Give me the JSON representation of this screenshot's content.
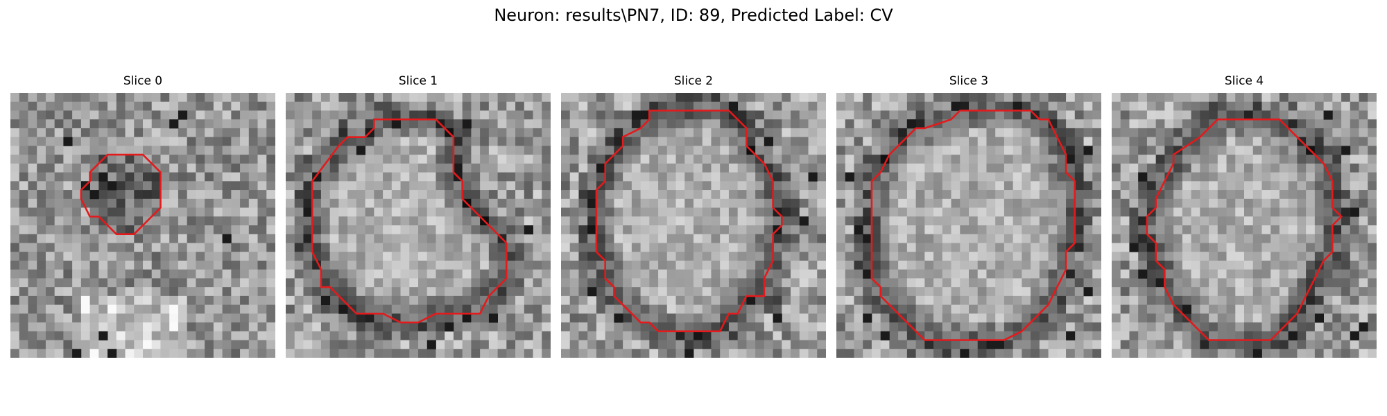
{
  "figure": {
    "title": "Neuron: results\\PN7, ID: 89, Predicted Label: CV"
  },
  "contour_color": "#e41a1c",
  "slices": [
    {
      "title": "Slice 0",
      "contour": [
        [
          11,
          7
        ],
        [
          15,
          7
        ],
        [
          17,
          9
        ],
        [
          17,
          13
        ],
        [
          14,
          16
        ],
        [
          12,
          16
        ],
        [
          10,
          14
        ],
        [
          9,
          14
        ],
        [
          8,
          12
        ],
        [
          8,
          11
        ],
        [
          9,
          10
        ],
        [
          9,
          9
        ]
      ],
      "dark_spots": [
        [
          8,
          10
        ],
        [
          9,
          11
        ],
        [
          10,
          9
        ],
        [
          11,
          10
        ],
        [
          18,
          3
        ],
        [
          19,
          2
        ],
        [
          6,
          5
        ],
        [
          10,
          27
        ],
        [
          11,
          29
        ],
        [
          7,
          29
        ],
        [
          24,
          16
        ]
      ]
    },
    {
      "title": "Slice 1",
      "contour": [
        [
          10,
          3
        ],
        [
          17,
          3
        ],
        [
          19,
          5
        ],
        [
          19,
          9
        ],
        [
          20,
          10
        ],
        [
          20,
          12
        ],
        [
          25,
          17
        ],
        [
          25,
          21
        ],
        [
          23,
          23
        ],
        [
          22,
          25
        ],
        [
          17,
          25
        ],
        [
          15,
          26
        ],
        [
          13,
          26
        ],
        [
          11,
          25
        ],
        [
          8,
          25
        ],
        [
          5,
          22
        ],
        [
          4,
          22
        ],
        [
          4,
          20
        ],
        [
          3,
          18
        ],
        [
          3,
          10
        ],
        [
          6,
          6
        ],
        [
          7,
          5
        ],
        [
          9,
          5
        ],
        [
          10,
          4
        ]
      ],
      "dark_spots": [
        [
          2,
          13
        ],
        [
          3,
          9
        ],
        [
          4,
          23
        ],
        [
          6,
          24
        ],
        [
          9,
          4
        ],
        [
          8,
          6
        ],
        [
          20,
          3
        ],
        [
          12,
          3
        ],
        [
          27,
          15
        ],
        [
          23,
          25
        ],
        [
          18,
          26
        ],
        [
          16,
          28
        ]
      ]
    },
    {
      "title": "Slice 2",
      "contour": [
        [
          10,
          2
        ],
        [
          19,
          2
        ],
        [
          21,
          4
        ],
        [
          21,
          6
        ],
        [
          23,
          8
        ],
        [
          24,
          10
        ],
        [
          24,
          13
        ],
        [
          25,
          14
        ],
        [
          25,
          15
        ],
        [
          24,
          16
        ],
        [
          24,
          19
        ],
        [
          23,
          21
        ],
        [
          23,
          23
        ],
        [
          21,
          23
        ],
        [
          20,
          25
        ],
        [
          19,
          25
        ],
        [
          18,
          27
        ],
        [
          11,
          27
        ],
        [
          10,
          26
        ],
        [
          9,
          26
        ],
        [
          6,
          23
        ],
        [
          6,
          22
        ],
        [
          5,
          21
        ],
        [
          5,
          19
        ],
        [
          4,
          18
        ],
        [
          4,
          11
        ],
        [
          5,
          10
        ],
        [
          5,
          8
        ],
        [
          7,
          6
        ],
        [
          7,
          5
        ],
        [
          9,
          4
        ],
        [
          10,
          3
        ]
      ],
      "dark_spots": [
        [
          3,
          12
        ],
        [
          4,
          8
        ],
        [
          3,
          22
        ],
        [
          6,
          25
        ],
        [
          14,
          29
        ],
        [
          13,
          30
        ],
        [
          19,
          1
        ],
        [
          23,
          5
        ],
        [
          27,
          14
        ],
        [
          28,
          9
        ],
        [
          24,
          25
        ],
        [
          8,
          2
        ]
      ]
    },
    {
      "title": "Slice 3",
      "contour": [
        [
          14,
          2
        ],
        [
          22,
          2
        ],
        [
          23,
          3
        ],
        [
          24,
          3
        ],
        [
          25,
          5
        ],
        [
          26,
          7
        ],
        [
          26,
          9
        ],
        [
          27,
          10
        ],
        [
          27,
          17
        ],
        [
          26,
          18
        ],
        [
          26,
          20
        ],
        [
          25,
          22
        ],
        [
          24,
          24
        ],
        [
          22,
          26
        ],
        [
          21,
          27
        ],
        [
          19,
          28
        ],
        [
          10,
          28
        ],
        [
          8,
          26
        ],
        [
          7,
          25
        ],
        [
          5,
          23
        ],
        [
          5,
          22
        ],
        [
          4,
          21
        ],
        [
          4,
          10
        ],
        [
          5,
          9
        ],
        [
          6,
          7
        ],
        [
          7,
          6
        ],
        [
          8,
          5
        ],
        [
          9,
          4
        ],
        [
          10,
          4
        ],
        [
          13,
          3
        ]
      ],
      "dark_spots": [
        [
          3,
          20
        ],
        [
          2,
          15
        ],
        [
          3,
          25
        ],
        [
          5,
          27
        ],
        [
          14,
          29
        ],
        [
          13,
          1
        ],
        [
          20,
          1
        ],
        [
          28,
          6
        ],
        [
          28,
          22
        ],
        [
          26,
          27
        ],
        [
          8,
          3
        ],
        [
          1,
          9
        ]
      ]
    },
    {
      "title": "Slice 4",
      "contour": [
        [
          12,
          3
        ],
        [
          19,
          3
        ],
        [
          21,
          5
        ],
        [
          23,
          7
        ],
        [
          24,
          8
        ],
        [
          25,
          10
        ],
        [
          25,
          13
        ],
        [
          26,
          14
        ],
        [
          25,
          15
        ],
        [
          25,
          18
        ],
        [
          24,
          19
        ],
        [
          23,
          21
        ],
        [
          22,
          23
        ],
        [
          21,
          25
        ],
        [
          18,
          28
        ],
        [
          11,
          28
        ],
        [
          10,
          27
        ],
        [
          9,
          26
        ],
        [
          7,
          24
        ],
        [
          6,
          22
        ],
        [
          6,
          20
        ],
        [
          5,
          19
        ],
        [
          5,
          17
        ],
        [
          4,
          16
        ],
        [
          4,
          14
        ],
        [
          5,
          13
        ],
        [
          5,
          12
        ],
        [
          6,
          10
        ],
        [
          7,
          8
        ],
        [
          7,
          7
        ],
        [
          10,
          5
        ]
      ],
      "dark_spots": [
        [
          28,
          26
        ],
        [
          27,
          27
        ],
        [
          2,
          17
        ],
        [
          3,
          20
        ],
        [
          23,
          25
        ],
        [
          20,
          27
        ],
        [
          8,
          24
        ],
        [
          26,
          6
        ],
        [
          24,
          2
        ],
        [
          3,
          9
        ],
        [
          16,
          29
        ],
        [
          27,
          13
        ]
      ]
    }
  ]
}
